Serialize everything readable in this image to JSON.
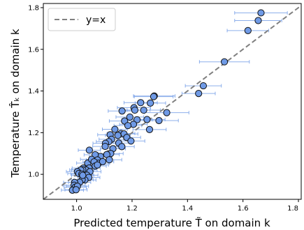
{
  "chart_data": {
    "type": "scatter",
    "xlabel": "Predicted temperature T̃ on domain k",
    "ylabel": "Temperature T̂ₖ on domain k",
    "xlim": [
      0.88,
      1.81
    ],
    "ylim": [
      0.88,
      1.82
    ],
    "x_ticks": [
      1.0,
      1.2,
      1.4,
      1.6,
      1.8
    ],
    "y_ticks": [
      1.0,
      1.2,
      1.4,
      1.6,
      1.8
    ],
    "tick_labels_x": [
      "1.0",
      "1.2",
      "1.4",
      "1.6",
      "1.8"
    ],
    "tick_labels_y": [
      "1.0",
      "1.2",
      "1.4",
      "1.6",
      "1.8"
    ],
    "grid": false,
    "legend": {
      "position": "top-left",
      "entries": [
        {
          "label": "y=x",
          "style": "dashed",
          "color": "#808080"
        }
      ]
    },
    "reference_line": {
      "label": "y=x",
      "color": "#808080",
      "style": "dashed"
    },
    "marker_color": "#6f9ae6",
    "errorbar_color": "#7aa2e8",
    "points": [
      [
        1.665,
        1.775,
        0.095
      ],
      [
        1.655,
        1.738,
        0.085
      ],
      [
        1.618,
        1.69,
        0.075
      ],
      [
        1.533,
        1.54,
        0.09
      ],
      [
        1.457,
        1.425,
        0.065
      ],
      [
        1.44,
        1.388,
        0.06
      ],
      [
        1.28,
        1.376,
        0.075
      ],
      [
        1.278,
        1.373,
        0.07
      ],
      [
        1.231,
        1.344,
        0.06
      ],
      [
        1.266,
        1.342,
        0.055
      ],
      [
        1.164,
        1.304,
        0.05
      ],
      [
        1.207,
        1.32,
        0.06
      ],
      [
        1.21,
        1.308,
        0.055
      ],
      [
        1.242,
        1.308,
        0.06
      ],
      [
        1.325,
        1.296,
        0.08
      ],
      [
        1.297,
        1.258,
        0.07
      ],
      [
        1.192,
        1.275,
        0.05
      ],
      [
        1.173,
        1.256,
        0.055
      ],
      [
        1.218,
        1.262,
        0.055
      ],
      [
        1.254,
        1.263,
        0.065
      ],
      [
        1.205,
        1.24,
        0.05
      ],
      [
        1.185,
        1.234,
        0.05
      ],
      [
        1.263,
        1.215,
        0.06
      ],
      [
        1.138,
        1.216,
        0.045
      ],
      [
        1.16,
        1.196,
        0.05
      ],
      [
        1.171,
        1.194,
        0.05
      ],
      [
        1.149,
        1.187,
        0.045
      ],
      [
        1.181,
        1.177,
        0.05
      ],
      [
        1.196,
        1.16,
        0.05
      ],
      [
        1.121,
        1.19,
        0.045
      ],
      [
        1.126,
        1.168,
        0.045
      ],
      [
        1.152,
        1.15,
        0.045
      ],
      [
        1.116,
        1.157,
        0.045
      ],
      [
        1.163,
        1.133,
        0.045
      ],
      [
        1.131,
        1.123,
        0.045
      ],
      [
        1.104,
        1.149,
        0.045
      ],
      [
        1.103,
        1.134,
        0.045
      ],
      [
        1.123,
        1.1,
        0.045
      ],
      [
        1.109,
        1.095,
        0.045
      ],
      [
        1.086,
        1.086,
        0.04
      ],
      [
        1.067,
        1.094,
        0.04
      ],
      [
        1.046,
        1.116,
        0.04
      ],
      [
        1.04,
        1.054,
        0.04
      ],
      [
        1.075,
        1.069,
        0.04
      ],
      [
        1.054,
        1.072,
        0.04
      ],
      [
        1.079,
        1.053,
        0.04
      ],
      [
        1.063,
        1.06,
        0.04
      ],
      [
        1.094,
        1.061,
        0.04
      ],
      [
        1.118,
        1.07,
        0.045
      ],
      [
        1.067,
        1.04,
        0.04
      ],
      [
        1.075,
        1.045,
        0.04
      ],
      [
        1.045,
        1.03,
        0.04
      ],
      [
        1.024,
        1.03,
        0.04
      ],
      [
        1.034,
        1.021,
        0.04
      ],
      [
        1.022,
        1.022,
        0.04
      ],
      [
        1.015,
        1.021,
        0.04
      ],
      [
        1.048,
        1.013,
        0.04
      ],
      [
        1.003,
        1.013,
        0.04
      ],
      [
        1.008,
        1.004,
        0.04
      ],
      [
        1.019,
        1.001,
        0.04
      ],
      [
        1.037,
        0.996,
        0.04
      ],
      [
        1.044,
        0.985,
        0.04
      ],
      [
        1.03,
        0.973,
        0.04
      ],
      [
        1.02,
        0.974,
        0.04
      ],
      [
        1.011,
        0.962,
        0.04
      ],
      [
        0.993,
        0.961,
        0.04
      ],
      [
        0.991,
        0.948,
        0.04
      ],
      [
        0.995,
        0.938,
        0.04
      ],
      [
        1.003,
        0.943,
        0.04
      ],
      [
        0.985,
        0.924,
        0.04
      ],
      [
        0.998,
        0.926,
        0.04
      ],
      [
        1.022,
        0.995,
        0.04
      ]
    ]
  }
}
